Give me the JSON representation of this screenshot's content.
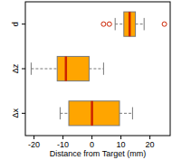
{
  "chart_data": {
    "type": "box",
    "orientation": "horizontal",
    "x_label": "Distance from Target (mm)",
    "categories": [
      "Δx",
      "Δz",
      "d"
    ],
    "min": [
      -11,
      -21,
      8
    ],
    "q1": [
      -8,
      -12,
      11
    ],
    "median": [
      0,
      -9,
      13
    ],
    "q3": [
      9.5,
      -1,
      15
    ],
    "max": [
      14,
      4,
      18
    ],
    "outliers": [
      [],
      [],
      [
        4,
        6,
        25
      ]
    ],
    "color": "#ffa500",
    "xlim": [
      -23,
      27
    ],
    "xticks": [
      -20,
      -10,
      0,
      10,
      20
    ]
  }
}
